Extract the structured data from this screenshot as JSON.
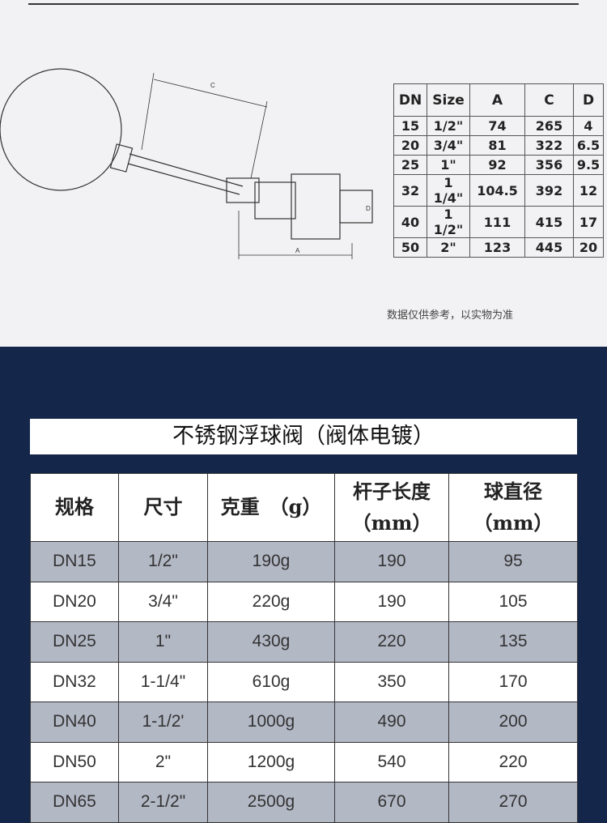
{
  "spec_table": {
    "headers": [
      "DN",
      "Size",
      "A",
      "C",
      "D"
    ],
    "rows": [
      [
        "15",
        "1/2\"",
        "74",
        "265",
        "4"
      ],
      [
        "20",
        "3/4\"",
        "81",
        "322",
        "6.5"
      ],
      [
        "25",
        "1\"",
        "92",
        "356",
        "9.5"
      ],
      [
        "32",
        "1 1/4\"",
        "104.5",
        "392",
        "12"
      ],
      [
        "40",
        "1 1/2\"",
        "111",
        "415",
        "17"
      ],
      [
        "50",
        "2\"",
        "123",
        "445",
        "20"
      ]
    ]
  },
  "drawing_labels": {
    "c": "C",
    "a": "A",
    "d": "D"
  },
  "note": "数据仅供参考，以实物为准",
  "title": "不锈钢浮球阀（阀体电镀）",
  "main_table": {
    "headers": [
      "规格",
      "尺寸",
      "克重　（g）",
      "杆子长度\n（mm）",
      "球直径\n（mm）"
    ],
    "rows": [
      [
        "DN15",
        "1/2\"",
        "190g",
        "190",
        "95"
      ],
      [
        "DN20",
        "3/4\"",
        "220g",
        "190",
        "105"
      ],
      [
        "DN25",
        "1\"",
        "430g",
        "220",
        "135"
      ],
      [
        "DN32",
        "1-1/4\"",
        "610g",
        "350",
        "170"
      ],
      [
        "DN40",
        "1-1/2'",
        "1000g",
        "490",
        "200"
      ],
      [
        "DN50",
        "2\"",
        "1200g",
        "540",
        "220"
      ],
      [
        "DN65",
        "2-1/2\"",
        "2500g",
        "670",
        "270"
      ]
    ]
  }
}
